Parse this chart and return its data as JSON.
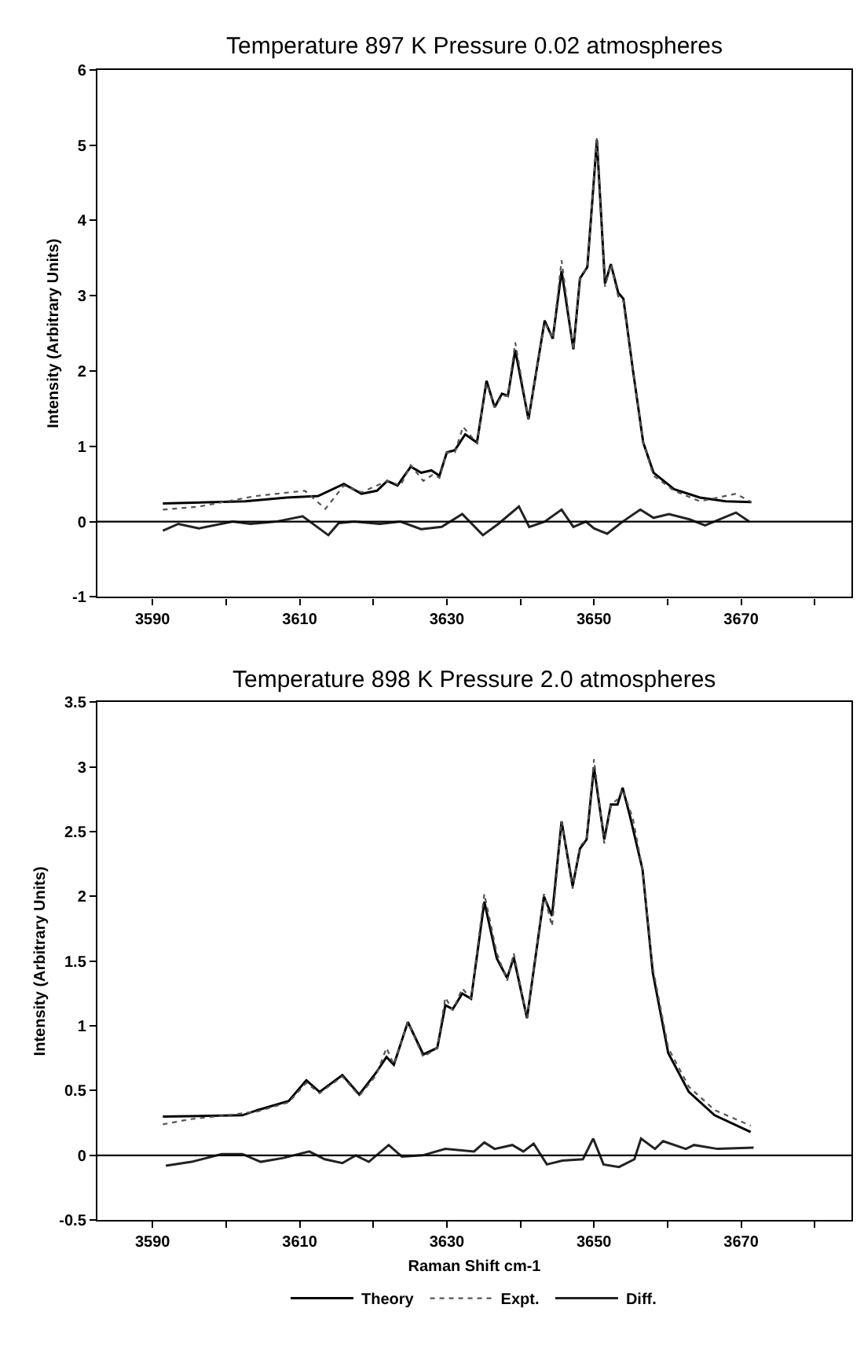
{
  "chart_data": [
    {
      "type": "line",
      "title": "Temperature 897 K Pressure 0.02 atmospheres",
      "ylabel": "Intensity (Arbitrary Units)",
      "xlim": [
        3582.5,
        3685
      ],
      "xticks": [
        3590,
        {
          "value": 3600,
          "label": null
        },
        3610,
        {
          "value": 3620,
          "label": null
        },
        3630,
        {
          "value": 3640,
          "label": null
        },
        3650,
        {
          "value": 3660,
          "label": null
        },
        3670,
        {
          "value": 3680,
          "label": null
        }
      ],
      "ylim": [
        -1,
        6
      ],
      "yticks": [
        -1,
        0,
        1,
        2,
        3,
        4,
        5,
        6
      ],
      "legend": false,
      "ref_lines": [
        {
          "axis": "y",
          "value": 0,
          "color": "#000000"
        }
      ],
      "series": [
        {
          "color": "#000000",
          "line_style": "solid",
          "x": [
            3591.4,
            3602.6,
            3608.2,
            3612.5,
            3616.0,
            3618.4,
            3620.5,
            3621.9,
            3623.3,
            3625.1,
            3626.5,
            3627.9,
            3629.0,
            3630.0,
            3631.1,
            3632.5,
            3634.1,
            3635.4,
            3636.5,
            3637.5,
            3638.3,
            3639.3,
            3641.1,
            3643.3,
            3644.4,
            3645.6,
            3647.2,
            3648.1,
            3649.1,
            3650.4,
            3651.5,
            3652.3,
            3653.3,
            3654.0,
            3655.3,
            3656.7,
            3658.1,
            3660.9,
            3664.4,
            3667.9,
            3671.4
          ],
          "values": [
            0.24,
            0.27,
            0.32,
            0.34,
            0.5,
            0.37,
            0.41,
            0.54,
            0.48,
            0.73,
            0.65,
            0.68,
            0.61,
            0.92,
            0.95,
            1.16,
            1.05,
            1.87,
            1.52,
            1.7,
            1.67,
            2.28,
            1.36,
            2.67,
            2.43,
            3.33,
            2.29,
            3.23,
            3.38,
            5.07,
            3.16,
            3.42,
            3.04,
            2.96,
            2.01,
            1.05,
            0.65,
            0.43,
            0.32,
            0.27,
            0.26
          ]
        },
        {
          "color": "#555555",
          "line_style": "dotted",
          "x": [
            3591.4,
            3596.3,
            3604.0,
            3610.7,
            3613.5,
            3616.0,
            3618.4,
            3621.9,
            3623.7,
            3625.1,
            3626.8,
            3628.2,
            3629.0,
            3630.0,
            3631.1,
            3632.2,
            3634.1,
            3635.4,
            3636.5,
            3637.5,
            3638.3,
            3639.3,
            3641.1,
            3643.3,
            3644.4,
            3645.6,
            3647.2,
            3648.1,
            3649.1,
            3650.4,
            3651.5,
            3652.3,
            3653.3,
            3654.0,
            3655.3,
            3656.7,
            3658.1,
            3660.9,
            3664.4,
            3669.3,
            3671.4
          ],
          "values": [
            0.16,
            0.2,
            0.34,
            0.41,
            0.17,
            0.48,
            0.39,
            0.54,
            0.48,
            0.75,
            0.54,
            0.63,
            0.58,
            0.92,
            0.92,
            1.26,
            1.04,
            1.84,
            1.52,
            1.67,
            1.67,
            2.38,
            1.36,
            2.65,
            2.43,
            3.47,
            2.28,
            3.26,
            3.37,
            5.1,
            3.12,
            3.42,
            2.99,
            2.93,
            2.01,
            1.05,
            0.61,
            0.41,
            0.27,
            0.37,
            0.26
          ]
        },
        {
          "color": "#222222",
          "line_style": "solid",
          "x": [
            3591.4,
            3593.5,
            3596.3,
            3600.9,
            3603.3,
            3606.8,
            3610.4,
            3613.9,
            3615.3,
            3617.4,
            3620.9,
            3623.7,
            3626.5,
            3629.3,
            3632.1,
            3634.9,
            3637.0,
            3639.8,
            3641.2,
            3643.3,
            3645.6,
            3647.2,
            3648.9,
            3650.0,
            3651.8,
            3653.9,
            3656.3,
            3658.1,
            3660.2,
            3663.0,
            3665.1,
            3669.3,
            3671.1
          ],
          "values": [
            -0.12,
            -0.03,
            -0.09,
            0,
            -0.03,
            0,
            0.07,
            -0.18,
            -0.02,
            0,
            -0.03,
            0,
            -0.1,
            -0.07,
            0.1,
            -0.18,
            -0.03,
            0.2,
            -0.07,
            0,
            0.16,
            -0.07,
            0,
            -0.09,
            -0.16,
            0,
            0.16,
            0.05,
            0.1,
            0.03,
            -0.05,
            0.12,
            0
          ]
        }
      ]
    },
    {
      "type": "line",
      "title": "Temperature 898 K Pressure 2.0 atmospheres",
      "xlabel": "Raman Shift cm-1",
      "ylabel": "Intensity (Arbitrary Units)",
      "xlim": [
        3582.5,
        3685
      ],
      "xticks": [
        3590,
        {
          "value": 3600,
          "label": null
        },
        3610,
        {
          "value": 3620,
          "label": null
        },
        3630,
        {
          "value": 3640,
          "label": null
        },
        3650,
        {
          "value": 3660,
          "label": null
        },
        3670,
        {
          "value": 3680,
          "label": null
        }
      ],
      "ylim": [
        -0.5,
        3.5
      ],
      "yticks": [
        -0.5,
        0,
        0.5,
        1,
        1.5,
        2,
        2.5,
        3,
        3.5
      ],
      "legend": "bottom",
      "ref_lines": [
        {
          "axis": "y",
          "value": 0,
          "color": "#000000"
        }
      ],
      "series": [
        {
          "name": "Theory",
          "color": "#000000",
          "line_style": "solid",
          "x": [
            3591.4,
            3602.2,
            3604.3,
            3608.5,
            3610.9,
            3612.7,
            3615.8,
            3618.1,
            3620.4,
            3621.8,
            3622.8,
            3624.7,
            3626.8,
            3628.7,
            3629.8,
            3630.8,
            3632.1,
            3633.3,
            3635.1,
            3636.8,
            3638.2,
            3639.1,
            3640.9,
            3643.2,
            3644.3,
            3645.6,
            3647.1,
            3648.1,
            3649.0,
            3650.0,
            3651.4,
            3652.3,
            3653.2,
            3653.9,
            3654.9,
            3656.6,
            3658.0,
            3660.1,
            3662.9,
            3666.4,
            3671.3
          ],
          "values": [
            0.3,
            0.31,
            0.35,
            0.42,
            0.58,
            0.49,
            0.62,
            0.47,
            0.64,
            0.76,
            0.7,
            1.03,
            0.78,
            0.83,
            1.16,
            1.13,
            1.25,
            1.21,
            1.96,
            1.52,
            1.37,
            1.53,
            1.06,
            2.0,
            1.85,
            2.58,
            2.08,
            2.37,
            2.44,
            3.0,
            2.44,
            2.71,
            2.71,
            2.84,
            2.62,
            2.21,
            1.41,
            0.79,
            0.49,
            0.31,
            0.18
          ]
        },
        {
          "name": "Expt.",
          "color": "#555555",
          "line_style": "dotted",
          "x": [
            3591.4,
            3595.2,
            3600.2,
            3604.3,
            3608.5,
            3610.9,
            3612.7,
            3615.8,
            3618.1,
            3620.4,
            3621.8,
            3622.8,
            3624.7,
            3626.8,
            3628.7,
            3629.8,
            3630.8,
            3632.1,
            3633.3,
            3635.1,
            3636.8,
            3638.2,
            3639.1,
            3640.9,
            3643.2,
            3644.3,
            3645.6,
            3647.1,
            3648.1,
            3649.0,
            3650.0,
            3651.4,
            3652.3,
            3653.2,
            3653.9,
            3655.3,
            3656.6,
            3658.0,
            3660.1,
            3662.9,
            3666.4,
            3671.3
          ],
          "values": [
            0.24,
            0.28,
            0.31,
            0.34,
            0.41,
            0.56,
            0.48,
            0.61,
            0.46,
            0.62,
            0.83,
            0.7,
            1.03,
            0.76,
            0.83,
            1.22,
            1.12,
            1.29,
            1.21,
            2.02,
            1.56,
            1.35,
            1.56,
            1.06,
            2.02,
            1.77,
            2.58,
            2.06,
            2.39,
            2.44,
            3.06,
            2.41,
            2.71,
            2.75,
            2.83,
            2.6,
            2.21,
            1.45,
            0.83,
            0.53,
            0.35,
            0.23
          ]
        },
        {
          "name": "Diff.",
          "color": "#222222",
          "line_style": "solid",
          "x": [
            3591.8,
            3595.3,
            3599.4,
            3602.2,
            3604.7,
            3607.8,
            3611.3,
            3613.4,
            3615.8,
            3617.6,
            3619.4,
            3622.1,
            3623.9,
            3626.7,
            3629.8,
            3633.7,
            3635.1,
            3636.5,
            3638.9,
            3640.4,
            3641.8,
            3643.6,
            3645.7,
            3648.5,
            3649.9,
            3651.3,
            3653.4,
            3655.5,
            3656.4,
            3658.3,
            3659.4,
            3662.5,
            3663.6,
            3666.8,
            3671.7
          ],
          "values": [
            -0.08,
            -0.05,
            0.01,
            0.01,
            -0.05,
            -0.02,
            0.03,
            -0.03,
            -0.06,
            0,
            -0.05,
            0.08,
            -0.01,
            0,
            0.05,
            0.03,
            0.1,
            0.05,
            0.08,
            0.03,
            0.09,
            -0.07,
            -0.04,
            -0.03,
            0.13,
            -0.07,
            -0.09,
            -0.03,
            0.13,
            0.05,
            0.11,
            0.05,
            0.08,
            0.05,
            0.06
          ]
        }
      ]
    }
  ]
}
